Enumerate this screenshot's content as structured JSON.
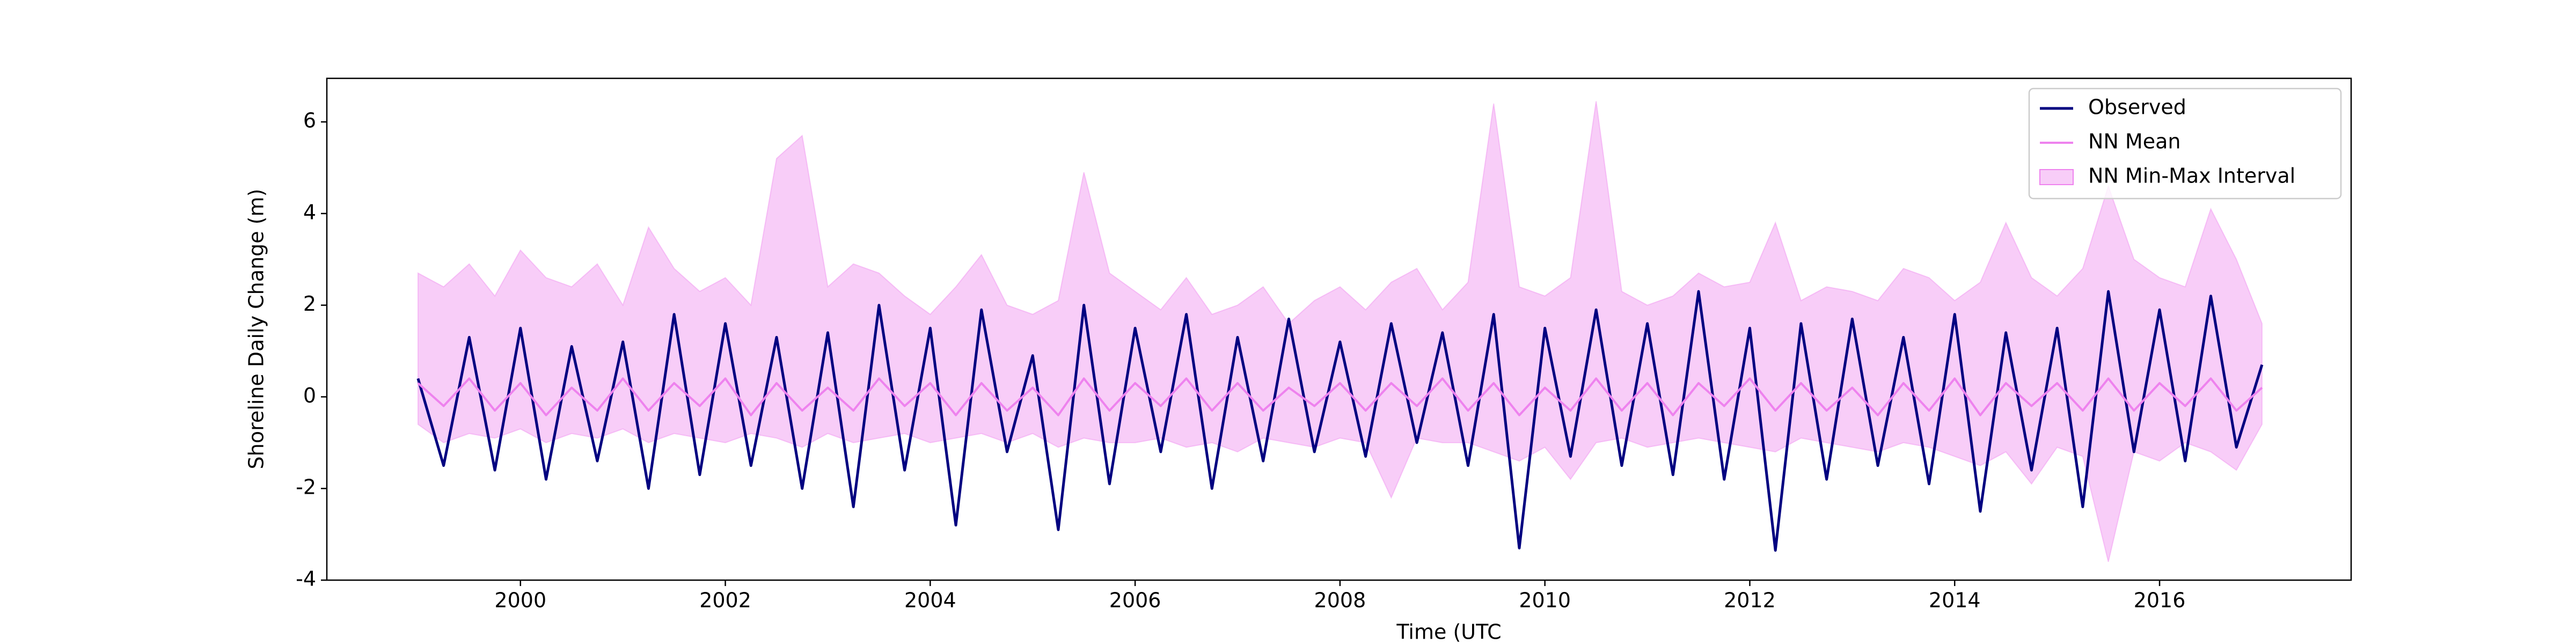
{
  "chart_data": {
    "type": "line",
    "xlabel": "Time (UTC",
    "ylabel": "Shoreline Daily Change (m)",
    "x": [
      1999,
      1999.25,
      1999.5,
      1999.75,
      2000,
      2000.25,
      2000.5,
      2000.75,
      2001,
      2001.25,
      2001.5,
      2001.75,
      2002,
      2002.25,
      2002.5,
      2002.75,
      2003,
      2003.25,
      2003.5,
      2003.75,
      2004,
      2004.25,
      2004.5,
      2004.75,
      2005,
      2005.25,
      2005.5,
      2005.75,
      2006,
      2006.25,
      2006.5,
      2006.75,
      2007,
      2007.25,
      2007.5,
      2007.75,
      2008,
      2008.25,
      2008.5,
      2008.75,
      2009,
      2009.25,
      2009.5,
      2009.75,
      2010,
      2010.25,
      2010.5,
      2010.75,
      2011,
      2011.25,
      2011.5,
      2011.75,
      2012,
      2012.25,
      2012.5,
      2012.75,
      2013,
      2013.25,
      2013.5,
      2013.75,
      2014,
      2014.25,
      2014.5,
      2014.75,
      2015,
      2015.25,
      2015.5,
      2015.75,
      2016,
      2016.25,
      2016.5,
      2016.75,
      2017
    ],
    "series": [
      {
        "name": "Observed",
        "color": "#000080",
        "values": [
          0.4,
          -1.5,
          1.3,
          -1.6,
          1.5,
          -1.8,
          1.1,
          -1.4,
          1.2,
          -2.0,
          1.8,
          -1.7,
          1.6,
          -1.5,
          1.3,
          -2.0,
          1.4,
          -2.4,
          2.0,
          -1.6,
          1.5,
          -2.8,
          1.9,
          -1.2,
          0.9,
          -2.9,
          2.0,
          -1.9,
          1.5,
          -1.2,
          1.8,
          -2.0,
          1.3,
          -1.4,
          1.7,
          -1.2,
          1.2,
          -1.3,
          1.6,
          -1.0,
          1.4,
          -1.5,
          1.8,
          -3.3,
          1.5,
          -1.3,
          1.9,
          -1.5,
          1.6,
          -1.7,
          2.3,
          -1.8,
          1.5,
          -3.35,
          1.6,
          -1.8,
          1.7,
          -1.5,
          1.3,
          -1.9,
          1.8,
          -2.5,
          1.4,
          -1.6,
          1.5,
          -2.4,
          2.3,
          -1.2,
          1.9,
          -1.4,
          2.2,
          -1.1,
          0.7
        ]
      },
      {
        "name": "NN Mean",
        "color": "#ee82ee",
        "values": [
          0.3,
          -0.2,
          0.4,
          -0.3,
          0.3,
          -0.4,
          0.2,
          -0.3,
          0.4,
          -0.3,
          0.3,
          -0.2,
          0.4,
          -0.4,
          0.3,
          -0.3,
          0.2,
          -0.3,
          0.4,
          -0.2,
          0.3,
          -0.4,
          0.3,
          -0.3,
          0.2,
          -0.4,
          0.4,
          -0.3,
          0.3,
          -0.2,
          0.4,
          -0.3,
          0.3,
          -0.3,
          0.2,
          -0.2,
          0.3,
          -0.3,
          0.3,
          -0.2,
          0.4,
          -0.3,
          0.3,
          -0.4,
          0.2,
          -0.3,
          0.4,
          -0.3,
          0.3,
          -0.4,
          0.3,
          -0.2,
          0.4,
          -0.3,
          0.3,
          -0.3,
          0.2,
          -0.4,
          0.3,
          -0.3,
          0.4,
          -0.4,
          0.3,
          -0.2,
          0.3,
          -0.3,
          0.4,
          -0.3,
          0.3,
          -0.2,
          0.4,
          -0.3,
          0.2
        ]
      }
    ],
    "interval": {
      "name": "NN Min-Max Interval",
      "color": "#ee82ee",
      "alpha": 0.4,
      "upper": [
        2.7,
        2.4,
        2.9,
        2.2,
        3.2,
        2.6,
        2.4,
        2.9,
        2.0,
        3.7,
        2.8,
        2.3,
        2.6,
        2.0,
        5.2,
        5.7,
        2.4,
        2.9,
        2.7,
        2.2,
        1.8,
        2.4,
        3.1,
        2.0,
        1.8,
        2.1,
        4.9,
        2.7,
        2.3,
        1.9,
        2.6,
        1.8,
        2.0,
        2.4,
        1.6,
        2.1,
        2.4,
        1.9,
        2.5,
        2.8,
        1.9,
        2.5,
        6.4,
        2.4,
        2.2,
        2.6,
        6.45,
        2.3,
        2.0,
        2.2,
        2.7,
        2.4,
        2.5,
        3.8,
        2.1,
        2.4,
        2.3,
        2.1,
        2.8,
        2.6,
        2.1,
        2.5,
        3.8,
        2.6,
        2.2,
        2.8,
        4.6,
        3.0,
        2.6,
        2.4,
        4.1,
        3.0,
        1.6
      ],
      "lower": [
        -0.6,
        -1.0,
        -0.8,
        -0.9,
        -0.7,
        -1.0,
        -0.8,
        -0.9,
        -0.7,
        -1.0,
        -0.8,
        -0.9,
        -1.0,
        -0.8,
        -0.9,
        -1.1,
        -0.8,
        -1.0,
        -0.9,
        -0.8,
        -1.0,
        -0.9,
        -0.8,
        -1.0,
        -0.8,
        -1.1,
        -0.9,
        -1.0,
        -1.0,
        -0.9,
        -1.1,
        -1.0,
        -1.2,
        -0.9,
        -1.0,
        -1.1,
        -0.9,
        -1.0,
        -2.2,
        -0.9,
        -1.0,
        -1.0,
        -1.2,
        -1.4,
        -1.1,
        -1.8,
        -1.0,
        -0.9,
        -1.1,
        -1.0,
        -0.9,
        -1.0,
        -1.1,
        -1.2,
        -0.9,
        -1.0,
        -1.1,
        -1.2,
        -1.0,
        -1.1,
        -1.3,
        -1.5,
        -1.2,
        -1.9,
        -1.1,
        -1.3,
        -3.6,
        -1.2,
        -1.4,
        -1.0,
        -1.2,
        -1.6,
        -0.6
      ]
    },
    "xlim": [
      1998.11,
      2017.87
    ],
    "ylim": [
      -4,
      6.95
    ],
    "xticks": [
      2000,
      2002,
      2004,
      2006,
      2008,
      2010,
      2012,
      2014,
      2016
    ],
    "yticks": [
      -4,
      -2,
      0,
      2,
      4,
      6
    ],
    "grid": false,
    "legend": "upper right"
  }
}
